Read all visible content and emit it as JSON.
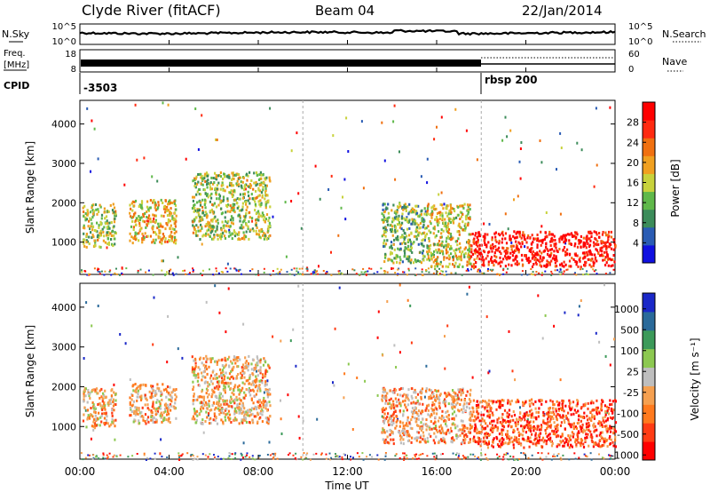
{
  "header": {
    "station": "Clyde River (fitACF)",
    "beam": "Beam 04",
    "date": "22/Jan/2014"
  },
  "noise_panel": {
    "left_label": "N.Sky",
    "left_ticks": [
      "10^5",
      "10^0"
    ],
    "right_label": "N.Search",
    "right_ticks": [
      "10^5",
      "10^0"
    ]
  },
  "freq_panel": {
    "left_label_line1": "Freq.",
    "left_label_line2": "[MHz]",
    "left_ticks": [
      "18",
      "8"
    ],
    "right_label": "Nave",
    "right_ticks": [
      "60",
      "0"
    ]
  },
  "cpid_panel": {
    "label": "CPID",
    "segments": [
      {
        "label": "-3503",
        "start": "00:00"
      },
      {
        "label": "rbsp 200",
        "start": "18:00"
      }
    ]
  },
  "colors": {
    "power_scale": [
      "#1010e0",
      "#2a5cb4",
      "#3c8c5a",
      "#5fb84a",
      "#c8d23c",
      "#f0a020",
      "#f07010",
      "#ff2a10",
      "#ff0000"
    ],
    "velocity_scale": [
      "#ff0000",
      "#ff3c14",
      "#ff7a1e",
      "#f5a050",
      "#bebebe",
      "#8cc850",
      "#3c9a5a",
      "#2a6a9a",
      "#1a28c8"
    ]
  },
  "chart_data": [
    {
      "type": "heatmap",
      "title": "",
      "ylabel": "Slant Range [km]",
      "xlabel": "",
      "xlim": [
        "00:00",
        "24:00"
      ],
      "ylim": [
        180,
        4600
      ],
      "y_ticks": [
        "1000",
        "2000",
        "3000",
        "4000"
      ],
      "x_ticks": [
        "00:00",
        "04:00",
        "08:00",
        "12:00",
        "16:00",
        "20:00",
        "00:00"
      ],
      "colorbar": {
        "label": "Power [dB]",
        "ticks": [
          "4",
          "8",
          "12",
          "16",
          "20",
          "24",
          "28"
        ],
        "range": [
          0,
          30
        ]
      },
      "regions": [
        {
          "t0": 0.1,
          "t1": 1.6,
          "r0": 900,
          "r1": 2000,
          "value": 14
        },
        {
          "t0": 2.2,
          "t1": 4.3,
          "r0": 1000,
          "r1": 2100,
          "value": 17
        },
        {
          "t0": 5.0,
          "t1": 8.5,
          "r0": 1100,
          "r1": 2800,
          "value": 14
        },
        {
          "t0": 13.5,
          "t1": 15.5,
          "r0": 500,
          "r1": 2000,
          "value": 12
        },
        {
          "t0": 15.5,
          "t1": 17.5,
          "r0": 400,
          "r1": 2000,
          "value": 16
        },
        {
          "t0": 17.5,
          "t1": 24.0,
          "r0": 400,
          "r1": 1300,
          "value": 28
        }
      ]
    },
    {
      "type": "heatmap",
      "title": "",
      "ylabel": "Slant Range [km]",
      "xlabel": "Time UT",
      "xlim": [
        "00:00",
        "24:00"
      ],
      "ylim": [
        180,
        4600
      ],
      "y_ticks": [
        "1000",
        "2000",
        "3000",
        "4000"
      ],
      "x_ticks": [
        "00:00",
        "04:00",
        "08:00",
        "12:00",
        "16:00",
        "20:00",
        "00:00"
      ],
      "colorbar": {
        "label": "Velocity [m s⁻¹]",
        "ticks": [
          "1000",
          "500",
          "100",
          "25",
          "-25",
          "-100",
          "-500",
          "-1000"
        ],
        "range": [
          -1000,
          1000
        ]
      },
      "regions": [
        {
          "t0": 0.1,
          "t1": 1.6,
          "r0": 1000,
          "r1": 2000,
          "value": -200
        },
        {
          "t0": 2.2,
          "t1": 4.3,
          "r0": 1100,
          "r1": 2100,
          "value": -200
        },
        {
          "t0": 5.0,
          "t1": 8.5,
          "r0": 1100,
          "r1": 2800,
          "value": -200
        },
        {
          "t0": 13.5,
          "t1": 17.5,
          "r0": 600,
          "r1": 2000,
          "value": -300
        },
        {
          "t0": 17.5,
          "t1": 24.0,
          "r0": 500,
          "r1": 1700,
          "value": -600
        }
      ]
    }
  ]
}
